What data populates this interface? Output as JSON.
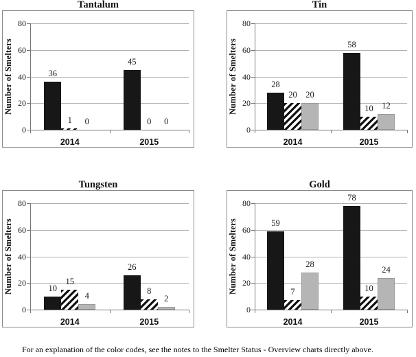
{
  "caption": "For an explanation of the color codes, see the notes to the Smelter Status - Overview charts directly above.",
  "colors": {
    "black_series": "#171717",
    "hatch_stripe": "#101010",
    "gray_series": "#b5b5b5",
    "gridline": "#b0b0b0",
    "axis": "#767676",
    "frame": "#8a8a8a"
  },
  "chart_data": [
    {
      "type": "bar",
      "title": "Tantalum",
      "ylabel": "Number of Smelters",
      "xlabel": "",
      "ylim": [
        0,
        80
      ],
      "yticks": [
        0,
        20,
        40,
        60,
        80
      ],
      "grid": true,
      "legend": "none",
      "value_labels": true,
      "categories": [
        "2014",
        "2015"
      ],
      "series": [
        {
          "name": "black",
          "style": "black",
          "values": [
            36,
            45
          ]
        },
        {
          "name": "hatched",
          "style": "hatch",
          "values": [
            1,
            0
          ]
        },
        {
          "name": "gray",
          "style": "gray",
          "values": [
            0,
            0
          ]
        }
      ]
    },
    {
      "type": "bar",
      "title": "Tin",
      "ylabel": "Number of Smelters",
      "xlabel": "",
      "ylim": [
        0,
        80
      ],
      "yticks": [
        0,
        20,
        40,
        60,
        80
      ],
      "grid": true,
      "legend": "none",
      "value_labels": true,
      "categories": [
        "2014",
        "2015"
      ],
      "series": [
        {
          "name": "black",
          "style": "black",
          "values": [
            28,
            58
          ]
        },
        {
          "name": "hatched",
          "style": "hatch",
          "values": [
            20,
            10
          ]
        },
        {
          "name": "gray",
          "style": "gray",
          "values": [
            20,
            12
          ]
        }
      ]
    },
    {
      "type": "bar",
      "title": "Tungsten",
      "ylabel": "Number of Smelters",
      "xlabel": "",
      "ylim": [
        0,
        80
      ],
      "yticks": [
        0,
        20,
        40,
        60,
        80
      ],
      "grid": true,
      "legend": "none",
      "value_labels": true,
      "categories": [
        "2014",
        "2015"
      ],
      "series": [
        {
          "name": "black",
          "style": "black",
          "values": [
            10,
            26
          ]
        },
        {
          "name": "hatched",
          "style": "hatch",
          "values": [
            15,
            8
          ]
        },
        {
          "name": "gray",
          "style": "gray",
          "values": [
            4,
            2
          ]
        }
      ]
    },
    {
      "type": "bar",
      "title": "Gold",
      "ylabel": "Number of Smelters",
      "xlabel": "",
      "ylim": [
        0,
        80
      ],
      "yticks": [
        0,
        20,
        40,
        60,
        80
      ],
      "grid": true,
      "legend": "none",
      "value_labels": true,
      "categories": [
        "2014",
        "2015"
      ],
      "series": [
        {
          "name": "black",
          "style": "black",
          "values": [
            59,
            78
          ]
        },
        {
          "name": "hatched",
          "style": "hatch",
          "values": [
            7,
            10
          ]
        },
        {
          "name": "gray",
          "style": "gray",
          "values": [
            28,
            24
          ]
        }
      ]
    }
  ]
}
